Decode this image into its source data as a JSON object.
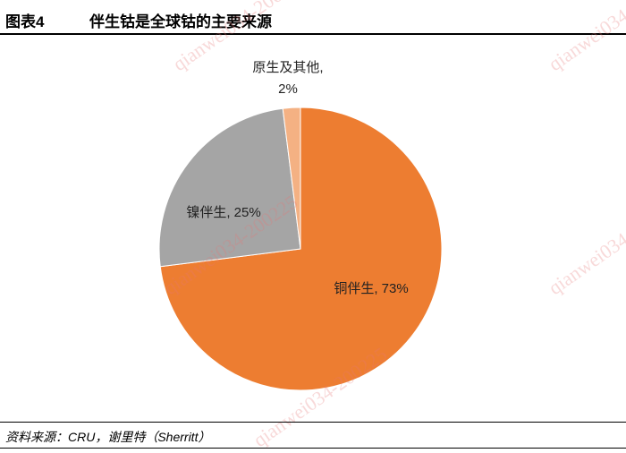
{
  "figure_label": "图表4",
  "source": "资料来源：CRU，谢里特（Sherritt）",
  "watermark": "qianwei034-200225",
  "chart_data": {
    "type": "pie",
    "title": "伴生钴是全球钴的主要来源",
    "categories": [
      "铜伴生",
      "镍伴生",
      "原生及其他"
    ],
    "values": [
      73,
      25,
      2
    ],
    "value_labels": [
      "铜伴生, 73%",
      "镍伴生, 25%",
      "原生及其他, 2%"
    ],
    "colors": [
      "#ed7d31",
      "#a5a5a5",
      "#f4b183"
    ]
  }
}
